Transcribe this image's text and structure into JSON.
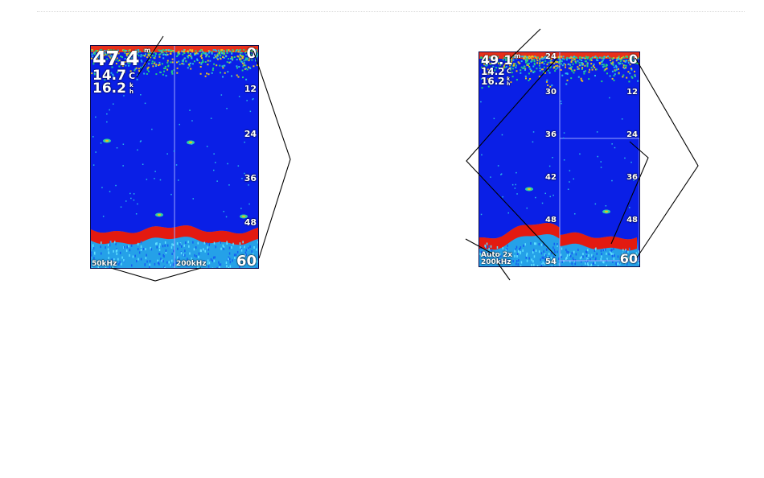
{
  "left_screen": {
    "depth": "47.4",
    "depth_unit": "m",
    "temp": "14.7",
    "temp_unit": "C",
    "speed": "16.2",
    "speed_unit_top": "k",
    "speed_unit_bottom": "h",
    "scale": [
      "0",
      "12",
      "24",
      "36",
      "48",
      "60"
    ],
    "freq_left": "50kHz",
    "freq_right": "200kHz"
  },
  "right_screen": {
    "depth": "49.1",
    "depth_unit": "m",
    "temp": "14.2",
    "temp_unit": "C",
    "speed": "16.2",
    "speed_unit_top": "k",
    "speed_unit_bottom": "h",
    "zoom_scale": [
      "24",
      "30",
      "36",
      "42",
      "48",
      "54"
    ],
    "scale": [
      "0",
      "12",
      "24",
      "36",
      "48",
      "60"
    ],
    "zoom_mode": "Auto 2x",
    "freq": "200kHz"
  },
  "colors": {
    "water": "#0a1fe6",
    "bottom": "#e31a10",
    "clutter": "#2ab8e8",
    "surface": "#e8301a",
    "line": "#000000"
  }
}
